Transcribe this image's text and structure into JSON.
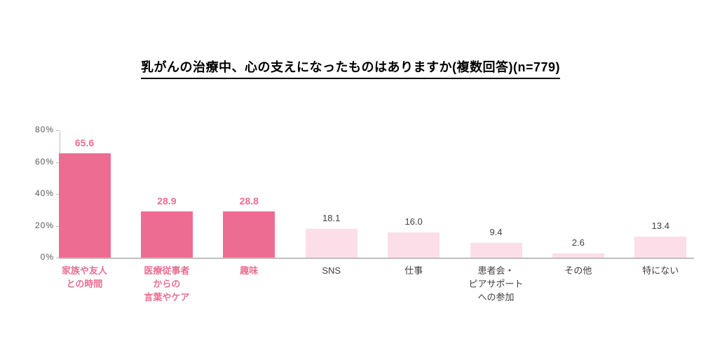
{
  "title": "乳がんの治療中、心の支えになったものはありますか(複数回答)(n=779)",
  "chart_data": {
    "type": "bar",
    "title": "乳がんの治療中、心の支えになったものはありますか(複数回答)(n=779)",
    "categories": [
      "家族や友人\nとの時間",
      "医療従事者\nからの\n言葉やケア",
      "趣味",
      "SNS",
      "仕事",
      "患者会・\nピアサポート\nへの参加",
      "その他",
      "特にない"
    ],
    "values": [
      65.6,
      28.9,
      28.8,
      18.1,
      16.0,
      9.4,
      2.6,
      13.4
    ],
    "value_labels": [
      "65.6",
      "28.9",
      "28.8",
      "18.1",
      "16.0",
      "9.4",
      "2.6",
      "13.4"
    ],
    "highlighted": [
      true,
      true,
      true,
      false,
      false,
      false,
      false,
      false
    ],
    "unit": "%",
    "ylim": [
      0,
      80
    ],
    "yticks": [
      {
        "value": 0,
        "label": "0%"
      },
      {
        "value": 20,
        "label": "20%"
      },
      {
        "value": 40,
        "label": "40%"
      },
      {
        "value": 60,
        "label": "60%"
      },
      {
        "value": 80,
        "label": "80%"
      }
    ],
    "grid": false,
    "legend": "none",
    "colors": {
      "bar_highlight": "#ed6d92",
      "bar_normal": "#fcdee8",
      "label_highlight": "#ed6d92",
      "label_normal": "#404040",
      "axis": "#bfbfbf",
      "tick_text": "#595959",
      "title_text": "#000000"
    }
  }
}
